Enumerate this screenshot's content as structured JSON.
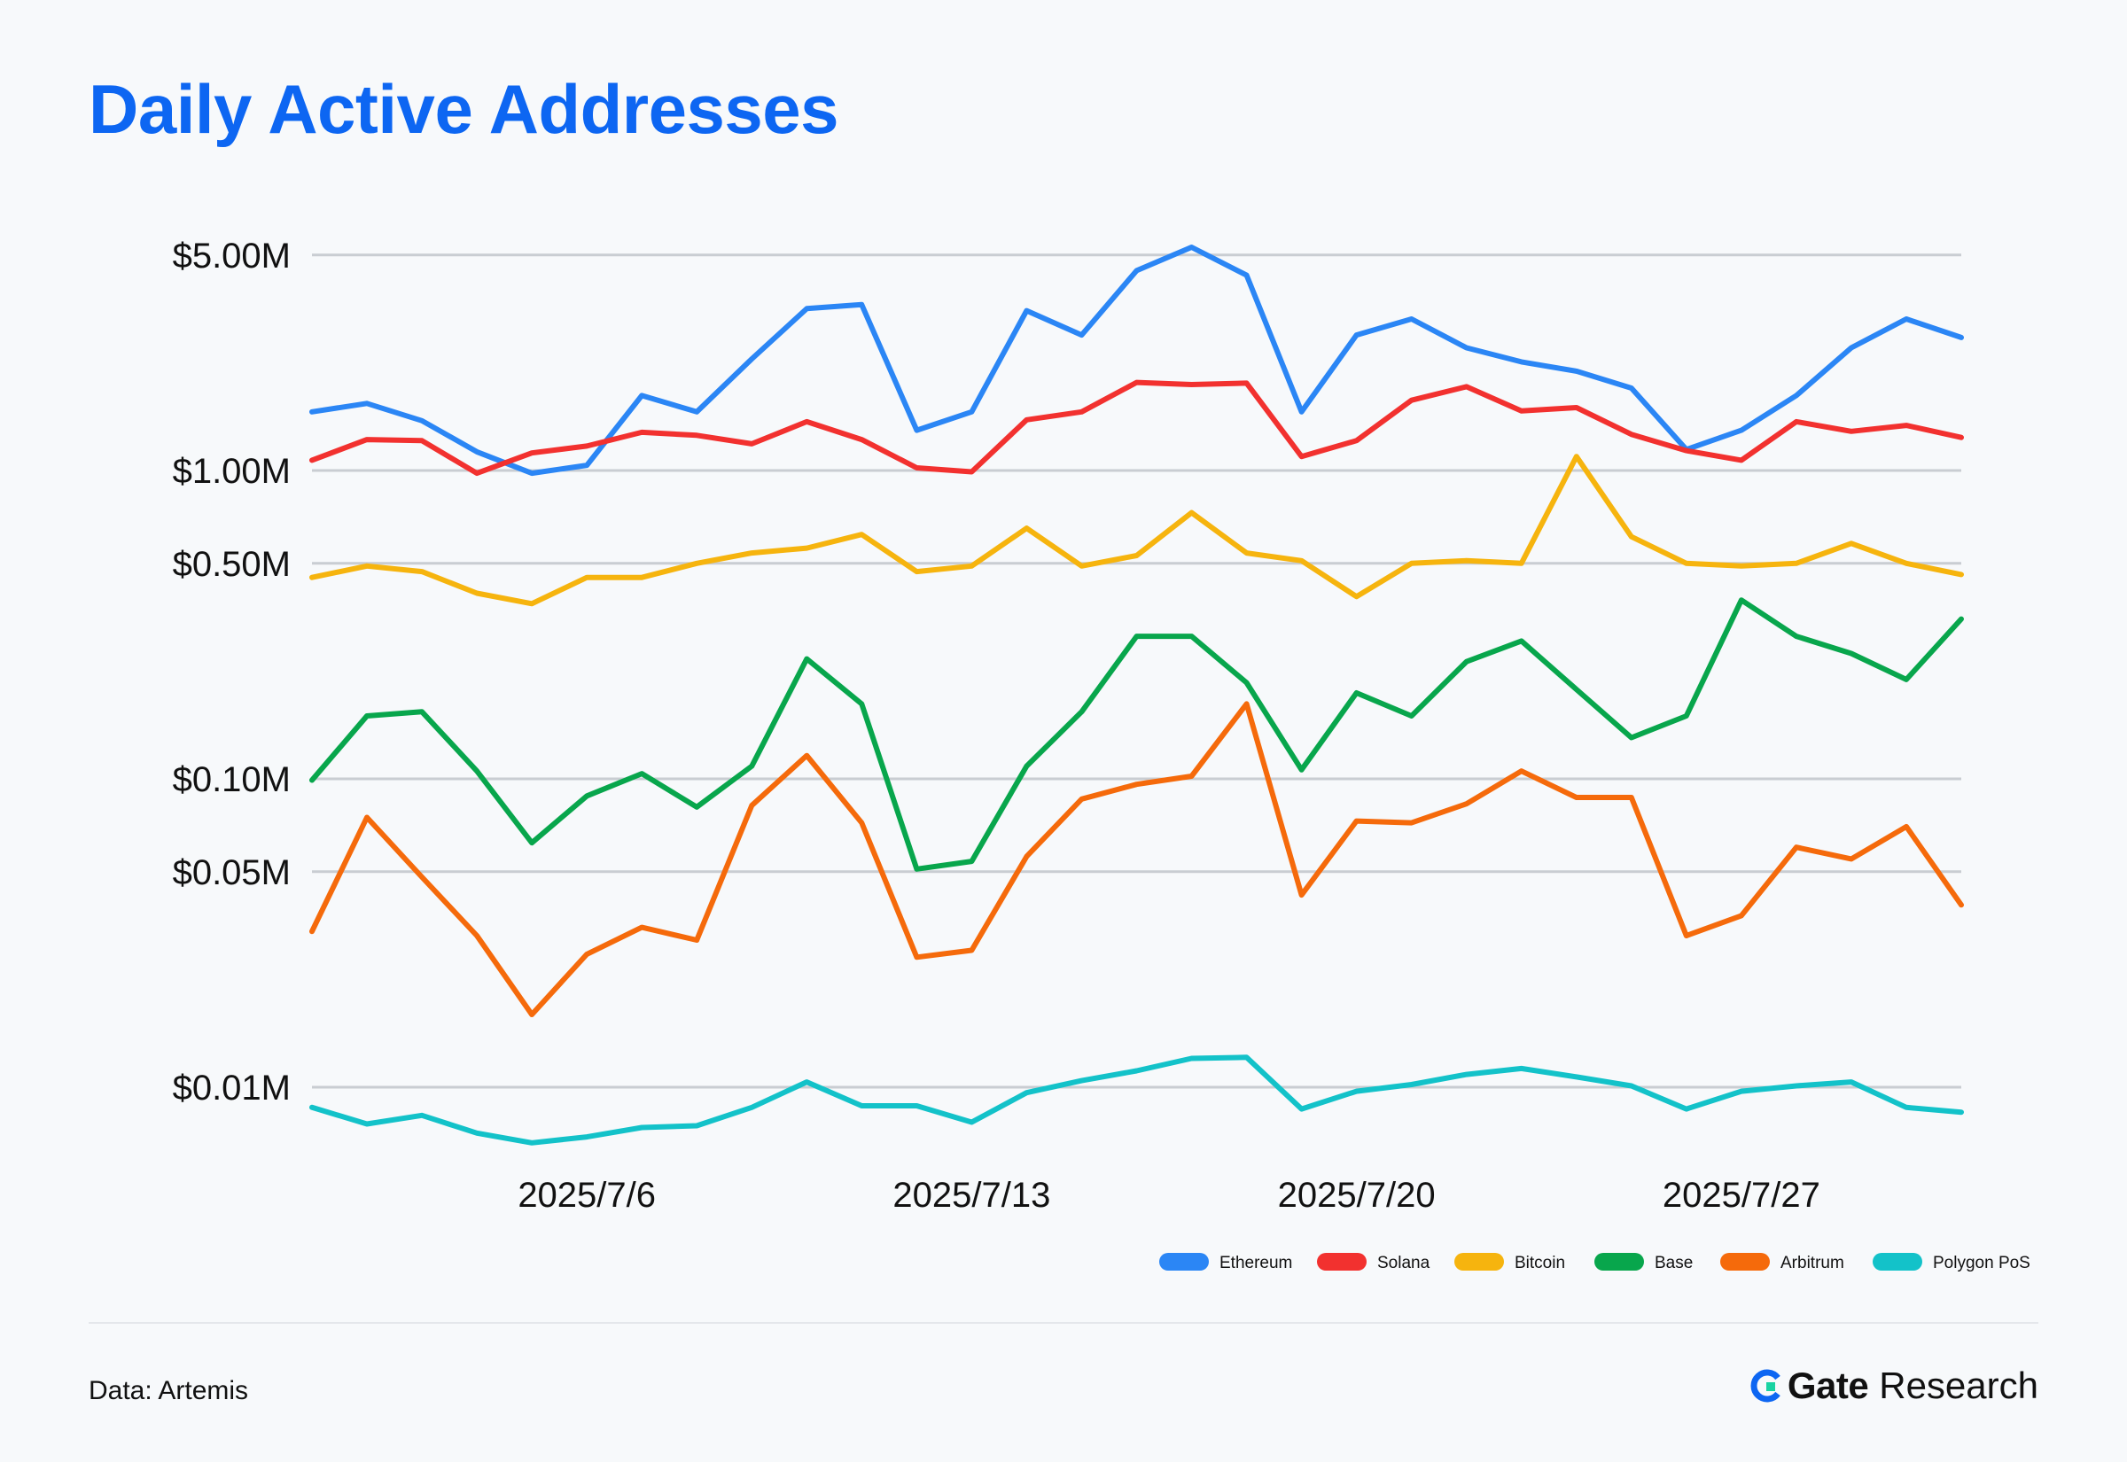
{
  "page": {
    "title": "Daily Active Addresses",
    "source": "Data: Artemis",
    "brand": {
      "name": "Gate",
      "suffix": "Research",
      "logo_icon": "gate-logo-icon"
    }
  },
  "chart_data": {
    "type": "line",
    "title": "Daily Active Addresses",
    "x": [
      "2025/7/1",
      "2025/7/2",
      "2025/7/3",
      "2025/7/4",
      "2025/7/5",
      "2025/7/6",
      "2025/7/7",
      "2025/7/8",
      "2025/7/9",
      "2025/7/10",
      "2025/7/11",
      "2025/7/12",
      "2025/7/13",
      "2025/7/14",
      "2025/7/15",
      "2025/7/16",
      "2025/7/17",
      "2025/7/18",
      "2025/7/19",
      "2025/7/20",
      "2025/7/21",
      "2025/7/22",
      "2025/7/23",
      "2025/7/24",
      "2025/7/25",
      "2025/7/26",
      "2025/7/27",
      "2025/7/28",
      "2025/7/29",
      "2025/7/30",
      "2025/7/31"
    ],
    "x_tick_labels": [
      "2025/7/6",
      "2025/7/13",
      "2025/7/20",
      "2025/7/27"
    ],
    "y_scale": "log",
    "y_ticks": [
      5000000,
      1000000,
      500000,
      100000,
      50000,
      10000
    ],
    "y_tick_labels": [
      "$5.00M",
      "$1.00M",
      "$0.50M",
      "$0.10M",
      "$0.05M",
      "$0.01M"
    ],
    "ylim": [
      7000,
      5500000
    ],
    "grid": true,
    "legend_position": "bottom-right",
    "series": [
      {
        "name": "Ethereum",
        "color": "#2b86f5",
        "values": [
          1550000,
          1650000,
          1450000,
          1150000,
          980000,
          1040000,
          1750000,
          1550000,
          2300000,
          3350000,
          3450000,
          1350000,
          1550000,
          3300000,
          2750000,
          4450000,
          5300000,
          4300000,
          1550000,
          2750000,
          3100000,
          2500000,
          2250000,
          2100000,
          1850000,
          1170000,
          1350000,
          1750000,
          2500000,
          3100000,
          2700000
        ]
      },
      {
        "name": "Solana",
        "color": "#f2312f",
        "values": [
          1080000,
          1260000,
          1250000,
          980000,
          1140000,
          1200000,
          1330000,
          1300000,
          1220000,
          1440000,
          1260000,
          1020000,
          990000,
          1460000,
          1550000,
          1930000,
          1900000,
          1920000,
          1110000,
          1250000,
          1690000,
          1870000,
          1560000,
          1600000,
          1310000,
          1160000,
          1080000,
          1440000,
          1340000,
          1400000,
          1280000
        ]
      },
      {
        "name": "Bitcoin",
        "color": "#f6b40e",
        "values": [
          450000,
          490000,
          470000,
          400000,
          370000,
          450000,
          450000,
          500000,
          540000,
          560000,
          620000,
          470000,
          490000,
          650000,
          490000,
          530000,
          730000,
          540000,
          510000,
          390000,
          500000,
          510000,
          500000,
          1110000,
          610000,
          500000,
          490000,
          500000,
          580000,
          500000,
          460000
        ]
      },
      {
        "name": "Base",
        "color": "#08a64c",
        "values": [
          99000,
          160000,
          165000,
          106000,
          62000,
          88000,
          104000,
          81000,
          110000,
          245000,
          175000,
          51000,
          54000,
          110000,
          165000,
          290000,
          290000,
          205000,
          107000,
          190000,
          160000,
          240000,
          280000,
          195000,
          136000,
          160000,
          380000,
          290000,
          255000,
          210000,
          330000
        ]
      },
      {
        "name": "Arbitrum",
        "color": "#f56a0b",
        "values": [
          32000,
          75000,
          48000,
          31000,
          17200,
          27000,
          33000,
          30000,
          82000,
          119000,
          72000,
          26400,
          27800,
          56000,
          86000,
          96000,
          102000,
          175000,
          42000,
          73000,
          72000,
          83000,
          106000,
          87000,
          87000,
          31000,
          36000,
          60000,
          55000,
          70000,
          39000
        ]
      },
      {
        "name": "Polygon PoS",
        "color": "#13c2c9",
        "values": [
          8600,
          7600,
          8100,
          7100,
          6600,
          6900,
          7400,
          7500,
          8600,
          10400,
          8700,
          8700,
          7700,
          9600,
          10500,
          11300,
          12400,
          12500,
          8500,
          9700,
          10200,
          11000,
          11500,
          10800,
          10100,
          8500,
          9700,
          10100,
          10400,
          8600,
          8300
        ]
      }
    ]
  }
}
